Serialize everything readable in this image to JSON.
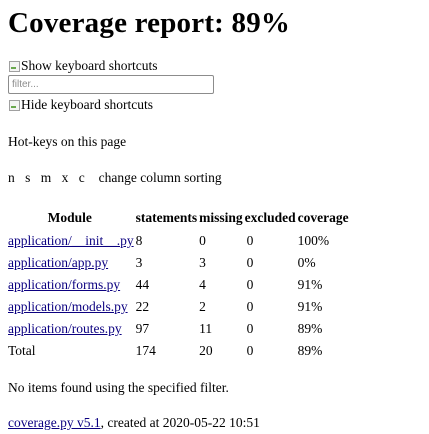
{
  "header": {
    "title": "Coverage report: 89%"
  },
  "shortcuts": {
    "show_alt": "Show keyboard shortcuts",
    "filter_placeholder": "filter...",
    "hide_alt": "Hide keyboard shortcuts"
  },
  "hotkeys": {
    "title": "Hot-keys on this page",
    "keys": "n s m x c",
    "description": "change column sorting"
  },
  "table": {
    "headers": [
      "Module",
      "statements",
      "missing",
      "excluded",
      "coverage"
    ],
    "rows": [
      [
        "application/__init__.py",
        "8",
        "0",
        "0",
        "100%"
      ],
      [
        "application/app.py",
        "3",
        "3",
        "0",
        "0%"
      ],
      [
        "application/forms.py",
        "44",
        "4",
        "0",
        "91%"
      ],
      [
        "application/models.py",
        "22",
        "2",
        "0",
        "91%"
      ],
      [
        "application/routes.py",
        "97",
        "11",
        "0",
        "89%"
      ]
    ],
    "total": [
      "Total",
      "174",
      "20",
      "0",
      "89%"
    ]
  },
  "no_items": "No items found using the specified filter.",
  "footer": {
    "link": "coverage.py v5.1",
    "text": ", created at 2020-05-22 10:51"
  },
  "colors": {
    "link": "#0b0080"
  }
}
